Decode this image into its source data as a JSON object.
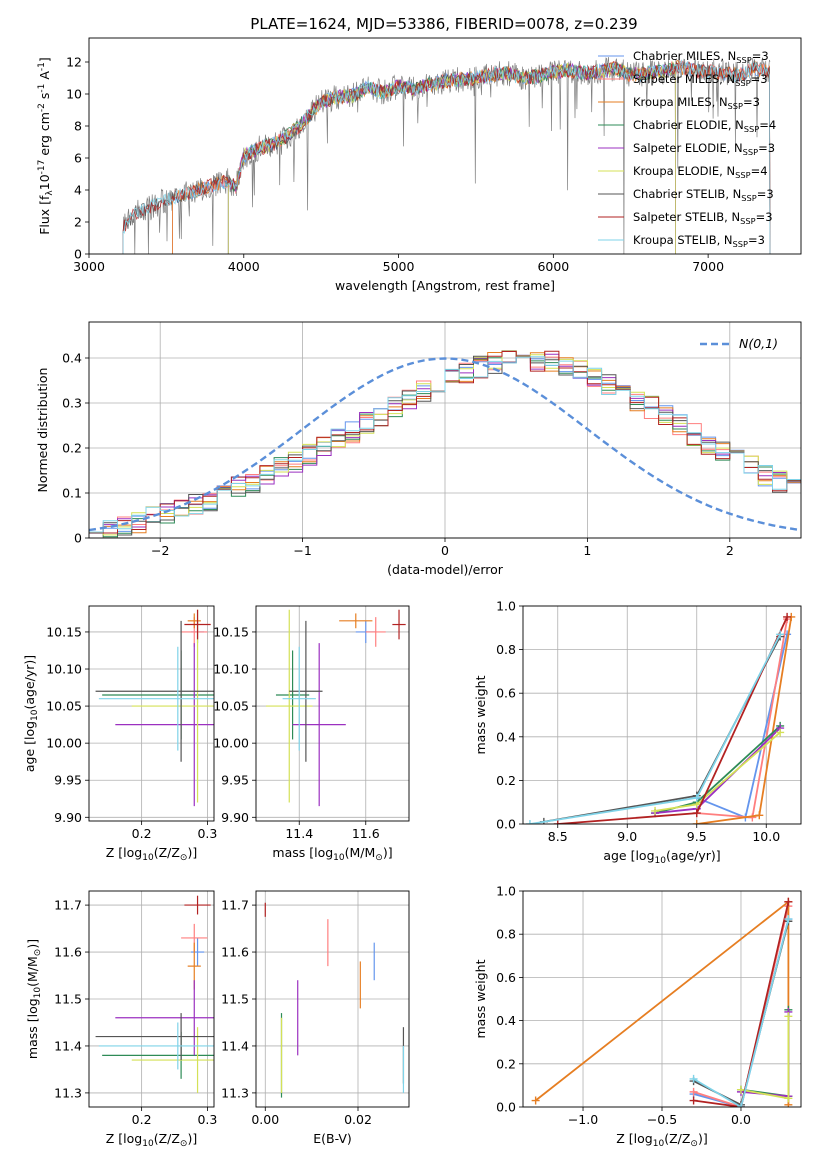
{
  "figure": {
    "title": "PLATE=1624, MJD=53386, FIBERID=0078, z=0.239"
  },
  "models": [
    {
      "key": "chabrier_miles",
      "label": "Chabrier MILES, N$_{SSP}$=3",
      "color": "#6495ed"
    },
    {
      "key": "salpeter_miles",
      "label": "Salpeter MILES, N$_{SSP}$=3",
      "color": "#ff7f7f"
    },
    {
      "key": "kroupa_miles",
      "label": "Kroupa MILES, N$_{SSP}$=3",
      "color": "#e67e22"
    },
    {
      "key": "chabrier_elodie",
      "label": "Chabrier ELODIE, N$_{SSP}$=4",
      "color": "#2e8b57"
    },
    {
      "key": "salpeter_elodie",
      "label": "Salpeter ELODIE, N$_{SSP}$=3",
      "color": "#9b30c0"
    },
    {
      "key": "kroupa_elodie",
      "label": "Kroupa ELODIE, N$_{SSP}$=4",
      "color": "#d4e157"
    },
    {
      "key": "chabrier_stelib",
      "label": "Chabrier STELIB, N$_{SSP}$=3",
      "color": "#555555"
    },
    {
      "key": "salpeter_stelib",
      "label": "Salpeter STELIB, N$_{SSP}$=3",
      "color": "#b22222"
    },
    {
      "key": "kroupa_stelib",
      "label": "Kroupa STELIB, N$_{SSP}$=3",
      "color": "#7fd3e8"
    }
  ],
  "chart_data": [
    {
      "id": "spectrum",
      "type": "line",
      "title": "PLATE=1624, MJD=53386, FIBERID=0078, z=0.239",
      "xlabel": "wavelength [Angstrom, rest frame]",
      "ylabel": "Flux [f$_\\lambda$10$^{-17}$ erg cm$^{-2}$ s$^{-1}$ A$^{-1}$]",
      "xlim": [
        3000,
        7600
      ],
      "ylim": [
        0,
        13.5
      ],
      "xticks": [
        3000,
        4000,
        5000,
        6000,
        7000
      ],
      "yticks": [
        0,
        2,
        4,
        6,
        8,
        10,
        12
      ],
      "legend": "top-right",
      "grid": false,
      "data_spectrum": {
        "x": [
          3220,
          3300,
          3400,
          3500,
          3600,
          3700,
          3800,
          3900,
          3950,
          4000,
          4100,
          4200,
          4300,
          4400,
          4500,
          4600,
          4700,
          4800,
          4900,
          5000,
          5100,
          5200,
          5300,
          5400,
          5500,
          5600,
          5700,
          5800,
          5900,
          6000,
          6100,
          6200,
          6300,
          6400,
          6500,
          6600,
          6700,
          6800,
          6900,
          7000,
          7100,
          7200,
          7300,
          7400
        ],
        "y": [
          1.6,
          2.6,
          2.9,
          3.4,
          3.7,
          4.0,
          4.3,
          4.6,
          4.2,
          6.1,
          6.6,
          6.9,
          7.5,
          8.4,
          9.5,
          9.8,
          9.9,
          10.4,
          10.1,
          10.5,
          10.3,
          10.6,
          10.8,
          10.9,
          11.0,
          11.2,
          11.3,
          11.0,
          11.1,
          11.4,
          11.5,
          11.3,
          11.4,
          11.6,
          11.2,
          11.3,
          11.4,
          11.7,
          11.5,
          11.4,
          11.3,
          11.2,
          11.6,
          11.4
        ]
      },
      "model_start": {
        "chabrier_miles": 3540,
        "salpeter_miles": 3540,
        "kroupa_miles": 3540,
        "chabrier_elodie": 3900,
        "salpeter_elodie": 3900,
        "kroupa_elodie": 3900,
        "chabrier_stelib": 3220,
        "salpeter_stelib": 3220,
        "kroupa_stelib": 3220
      },
      "model_end": {
        "chabrier_miles": 7400,
        "salpeter_miles": 7400,
        "kroupa_miles": 7400,
        "chabrier_elodie": 6790,
        "salpeter_elodie": 6790,
        "kroupa_elodie": 6790,
        "chabrier_stelib": 7400,
        "salpeter_stelib": 7400,
        "kroupa_stelib": 7400
      }
    },
    {
      "id": "residuals",
      "type": "line",
      "xlabel": "(data-model)/error",
      "ylabel": "Normed distribution",
      "xlim": [
        -2.5,
        2.5
      ],
      "ylim": [
        0,
        0.48
      ],
      "xticks": [
        -2,
        -1,
        0,
        1,
        2
      ],
      "yticks": [
        0.0,
        0.1,
        0.2,
        0.3,
        0.4
      ],
      "grid": true,
      "legend": "top-right",
      "reference_label": "$\\mathcal{N}(0,1)$",
      "reference_color": "#5b8fd9",
      "bin_edges_start": -2.5,
      "bin_width": 0.1,
      "histogram": [
        0.018,
        0.022,
        0.028,
        0.035,
        0.045,
        0.055,
        0.06,
        0.075,
        0.085,
        0.1,
        0.115,
        0.125,
        0.14,
        0.155,
        0.17,
        0.185,
        0.205,
        0.22,
        0.235,
        0.255,
        0.27,
        0.29,
        0.31,
        0.325,
        0.34,
        0.355,
        0.365,
        0.38,
        0.39,
        0.4,
        0.4,
        0.395,
        0.39,
        0.38,
        0.37,
        0.355,
        0.34,
        0.325,
        0.305,
        0.29,
        0.27,
        0.25,
        0.23,
        0.21,
        0.195,
        0.175,
        0.16,
        0.14,
        0.125,
        0.11
      ]
    },
    {
      "id": "age_vs_Z",
      "type": "scatter",
      "xlabel": "Z [log$_{10}$(Z/Z$_\\odot$)]",
      "ylabel": "age  [log$_{10}$(age/yr)]",
      "xlim": [
        0.12,
        0.31
      ],
      "ylim": [
        9.895,
        10.185
      ],
      "xticks": [
        0.2,
        0.3
      ],
      "xticklabels": [
        "0.2",
        "0.3"
      ],
      "yticks": [
        9.9,
        9.95,
        10.0,
        10.05,
        10.1,
        10.15
      ],
      "yticklabels": [
        "9.90",
        "9.95",
        "10.00",
        "10.05",
        "10.10",
        "10.15"
      ],
      "grid": true,
      "points": [
        {
          "model": "chabrier_miles",
          "x": 0.285,
          "xerr": 0.01,
          "y": 10.15,
          "yerr": 0.015
        },
        {
          "model": "salpeter_miles",
          "x": 0.28,
          "xerr": 0.02,
          "y": 10.15,
          "yerr": 0.02
        },
        {
          "model": "kroupa_miles",
          "x": 0.28,
          "xerr": 0.01,
          "y": 10.165,
          "yerr": 0.01
        },
        {
          "model": "chabrier_elodie",
          "x": 0.26,
          "xerr": 0.12,
          "y": 10.065,
          "yerr": 0.06
        },
        {
          "model": "salpeter_elodie",
          "x": 0.28,
          "xerr": 0.12,
          "y": 10.025,
          "yerr": 0.11
        },
        {
          "model": "kroupa_elodie",
          "x": 0.285,
          "xerr": 0.1,
          "y": 10.05,
          "yerr": 0.13
        },
        {
          "model": "chabrier_stelib",
          "x": 0.26,
          "xerr": 0.13,
          "y": 10.07,
          "yerr": 0.095
        },
        {
          "model": "salpeter_stelib",
          "x": 0.285,
          "xerr": 0.02,
          "y": 10.16,
          "yerr": 0.02
        },
        {
          "model": "kroupa_stelib",
          "x": 0.255,
          "xerr": 0.12,
          "y": 10.06,
          "yerr": 0.07
        }
      ]
    },
    {
      "id": "age_vs_mass",
      "type": "scatter",
      "xlabel": "mass [log$_{10}$(M/M$_\\odot$)]",
      "ylabel": "",
      "xlim": [
        11.27,
        11.73
      ],
      "ylim": [
        9.895,
        10.185
      ],
      "xticks": [
        11.4,
        11.6
      ],
      "xticklabels": [
        "11.4",
        "11.6"
      ],
      "yticks": [
        9.9,
        9.95,
        10.0,
        10.05,
        10.1,
        10.15
      ],
      "yticklabels": [
        "9.90",
        "9.95",
        "10.00",
        "10.05",
        "10.10",
        "10.15"
      ],
      "grid": true,
      "points": [
        {
          "model": "chabrier_miles",
          "x": 11.6,
          "xerr": 0.03,
          "y": 10.15,
          "yerr": 0.015
        },
        {
          "model": "salpeter_miles",
          "x": 11.63,
          "xerr": 0.03,
          "y": 10.15,
          "yerr": 0.02
        },
        {
          "model": "kroupa_miles",
          "x": 11.57,
          "xerr": 0.05,
          "y": 10.165,
          "yerr": 0.01
        },
        {
          "model": "chabrier_elodie",
          "x": 11.38,
          "xerr": 0.05,
          "y": 10.065,
          "yerr": 0.06
        },
        {
          "model": "salpeter_elodie",
          "x": 11.46,
          "xerr": 0.08,
          "y": 10.025,
          "yerr": 0.11
        },
        {
          "model": "kroupa_elodie",
          "x": 11.37,
          "xerr": 0.07,
          "y": 10.05,
          "yerr": 0.13
        },
        {
          "model": "chabrier_stelib",
          "x": 11.42,
          "xerr": 0.05,
          "y": 10.07,
          "yerr": 0.095
        },
        {
          "model": "salpeter_stelib",
          "x": 11.7,
          "xerr": 0.02,
          "y": 10.16,
          "yerr": 0.02
        },
        {
          "model": "kroupa_stelib",
          "x": 11.4,
          "xerr": 0.05,
          "y": 10.06,
          "yerr": 0.07
        }
      ]
    },
    {
      "id": "weight_vs_age",
      "type": "line",
      "xlabel": "age  [log$_{10}$(age/yr)]",
      "ylabel": "mass weight",
      "xlim": [
        8.25,
        10.25
      ],
      "ylim": [
        0,
        1.0
      ],
      "xticks": [
        8.5,
        9.0,
        9.5,
        10.0
      ],
      "xticklabels": [
        "8.5",
        "9.0",
        "9.5",
        "10.0"
      ],
      "yticks": [
        0,
        0.2,
        0.4,
        0.6,
        0.8,
        1.0
      ],
      "yticklabels": [
        "0.0",
        "0.2",
        "0.4",
        "0.6",
        "0.8",
        "1.0"
      ],
      "grid": true,
      "series": [
        {
          "model": "chabrier_miles",
          "points": [
            [
              9.5,
              0.12
            ],
            [
              9.85,
              0.03
            ],
            [
              10.15,
              0.87
            ]
          ]
        },
        {
          "model": "salpeter_miles",
          "points": [
            [
              9.5,
              0.05
            ],
            [
              9.9,
              0.03
            ],
            [
              10.15,
              0.94
            ]
          ]
        },
        {
          "model": "kroupa_miles",
          "points": [
            [
              9.5,
              0.0
            ],
            [
              9.95,
              0.04
            ],
            [
              10.18,
              0.95
            ]
          ]
        },
        {
          "model": "chabrier_elodie",
          "points": [
            [
              9.2,
              0.05
            ],
            [
              9.5,
              0.1
            ],
            [
              10.1,
              0.45
            ]
          ]
        },
        {
          "model": "salpeter_elodie",
          "points": [
            [
              9.2,
              0.05
            ],
            [
              9.5,
              0.07
            ],
            [
              10.1,
              0.44
            ]
          ]
        },
        {
          "model": "kroupa_elodie",
          "points": [
            [
              9.2,
              0.06
            ],
            [
              9.5,
              0.09
            ],
            [
              10.1,
              0.42
            ]
          ]
        },
        {
          "model": "chabrier_stelib",
          "points": [
            [
              8.4,
              0.01
            ],
            [
              9.5,
              0.13
            ],
            [
              10.1,
              0.86
            ]
          ]
        },
        {
          "model": "salpeter_stelib",
          "points": [
            [
              8.5,
              0.0
            ],
            [
              9.5,
              0.05
            ],
            [
              10.15,
              0.95
            ]
          ]
        },
        {
          "model": "kroupa_stelib",
          "points": [
            [
              8.3,
              0.0
            ],
            [
              9.5,
              0.12
            ],
            [
              10.1,
              0.87
            ]
          ]
        }
      ]
    },
    {
      "id": "mass_vs_Z",
      "type": "scatter",
      "xlabel": "Z [log$_{10}$(Z/Z$_\\odot$)]",
      "ylabel": "mass [log$_{10}$(M/M$_\\odot$)]",
      "xlim": [
        0.12,
        0.31
      ],
      "ylim": [
        11.27,
        11.73
      ],
      "xticks": [
        0.2,
        0.3
      ],
      "xticklabels": [
        "0.2",
        "0.3"
      ],
      "yticks": [
        11.3,
        11.4,
        11.5,
        11.6,
        11.7
      ],
      "yticklabels": [
        "11.3",
        "11.4",
        "11.5",
        "11.6",
        "11.7"
      ],
      "grid": true,
      "points": [
        {
          "model": "chabrier_miles",
          "x": 0.285,
          "xerr": 0.01,
          "y": 11.6,
          "yerr": 0.03
        },
        {
          "model": "salpeter_miles",
          "x": 0.28,
          "xerr": 0.02,
          "y": 11.63,
          "yerr": 0.03
        },
        {
          "model": "kroupa_miles",
          "x": 0.28,
          "xerr": 0.01,
          "y": 11.57,
          "yerr": 0.05
        },
        {
          "model": "chabrier_elodie",
          "x": 0.26,
          "xerr": 0.12,
          "y": 11.38,
          "yerr": 0.05
        },
        {
          "model": "salpeter_elodie",
          "x": 0.28,
          "xerr": 0.12,
          "y": 11.46,
          "yerr": 0.08
        },
        {
          "model": "kroupa_elodie",
          "x": 0.285,
          "xerr": 0.1,
          "y": 11.37,
          "yerr": 0.07
        },
        {
          "model": "chabrier_stelib",
          "x": 0.26,
          "xerr": 0.13,
          "y": 11.42,
          "yerr": 0.05
        },
        {
          "model": "salpeter_stelib",
          "x": 0.285,
          "xerr": 0.02,
          "y": 11.7,
          "yerr": 0.02
        },
        {
          "model": "kroupa_stelib",
          "x": 0.255,
          "xerr": 0.12,
          "y": 11.4,
          "yerr": 0.05
        }
      ]
    },
    {
      "id": "mass_vs_ebv",
      "type": "scatter",
      "xlabel": "E(B-V)",
      "ylabel": "",
      "xlim": [
        -0.002,
        0.031
      ],
      "ylim": [
        11.27,
        11.73
      ],
      "xticks": [
        0.0,
        0.02
      ],
      "xticklabels": [
        "0.00",
        "0.02"
      ],
      "yticks": [
        11.3,
        11.4,
        11.5,
        11.6,
        11.7
      ],
      "yticklabels": [
        "11.3",
        "11.4",
        "11.5",
        "11.6",
        "11.7"
      ],
      "grid": true,
      "points": [
        {
          "model": "chabrier_miles",
          "x": 0.0235,
          "y": 11.58,
          "yerr": 0.04
        },
        {
          "model": "salpeter_miles",
          "x": 0.0135,
          "y": 11.62,
          "yerr": 0.05
        },
        {
          "model": "kroupa_miles",
          "x": 0.0205,
          "y": 11.53,
          "yerr": 0.05
        },
        {
          "model": "chabrier_elodie",
          "x": 0.0035,
          "y": 11.38,
          "yerr": 0.09
        },
        {
          "model": "salpeter_elodie",
          "x": 0.007,
          "y": 11.46,
          "yerr": 0.08
        },
        {
          "model": "kroupa_elodie",
          "x": 0.0035,
          "y": 11.38,
          "yerr": 0.08
        },
        {
          "model": "chabrier_stelib",
          "x": 0.0298,
          "y": 11.38,
          "yerr": 0.06
        },
        {
          "model": "salpeter_stelib",
          "x": 0.0,
          "y": 11.69,
          "yerr": 0.015
        },
        {
          "model": "kroupa_stelib",
          "x": 0.0298,
          "y": 11.35,
          "yerr": 0.05
        }
      ]
    },
    {
      "id": "weight_vs_Z",
      "type": "line",
      "xlabel": "Z [log$_{10}$(Z/Z$_\\odot$)]",
      "ylabel": "mass weight",
      "xlim": [
        -1.38,
        0.38
      ],
      "ylim": [
        0,
        1.0
      ],
      "xticks": [
        -1.0,
        -0.5,
        0.0
      ],
      "xticklabels": [
        "−1.0",
        "−0.5",
        "0.0"
      ],
      "yticks": [
        0,
        0.2,
        0.4,
        0.6,
        0.8,
        1.0
      ],
      "yticklabels": [
        "0.0",
        "0.2",
        "0.4",
        "0.6",
        "0.8",
        "1.0"
      ],
      "grid": true,
      "series": [
        {
          "model": "chabrier_miles",
          "points": [
            [
              -0.3,
              0.06
            ],
            [
              0.0,
              0.0
            ],
            [
              0.3,
              0.87
            ]
          ]
        },
        {
          "model": "salpeter_miles",
          "points": [
            [
              -0.3,
              0.07
            ],
            [
              0.0,
              0.0
            ],
            [
              0.3,
              0.93
            ]
          ]
        },
        {
          "model": "kroupa_miles",
          "points": [
            [
              -1.3,
              0.03
            ],
            [
              0.3,
              0.95
            ],
            [
              0.3,
              0.01
            ]
          ]
        },
        {
          "model": "chabrier_elodie",
          "points": [
            [
              0.0,
              0.08
            ],
            [
              0.3,
              0.05
            ],
            [
              0.3,
              0.45
            ]
          ]
        },
        {
          "model": "salpeter_elodie",
          "points": [
            [
              0.0,
              0.07
            ],
            [
              0.3,
              0.05
            ],
            [
              0.3,
              0.44
            ]
          ]
        },
        {
          "model": "kroupa_elodie",
          "points": [
            [
              0.0,
              0.08
            ],
            [
              0.3,
              0.04
            ],
            [
              0.3,
              0.42
            ]
          ]
        },
        {
          "model": "chabrier_stelib",
          "points": [
            [
              -0.3,
              0.12
            ],
            [
              0.0,
              0.01
            ],
            [
              0.3,
              0.86
            ]
          ]
        },
        {
          "model": "salpeter_stelib",
          "points": [
            [
              -0.3,
              0.03
            ],
            [
              0.0,
              0.0
            ],
            [
              0.3,
              0.95
            ]
          ]
        },
        {
          "model": "kroupa_stelib",
          "points": [
            [
              -0.3,
              0.13
            ],
            [
              0.0,
              0.0
            ],
            [
              0.3,
              0.87
            ]
          ]
        }
      ]
    }
  ]
}
